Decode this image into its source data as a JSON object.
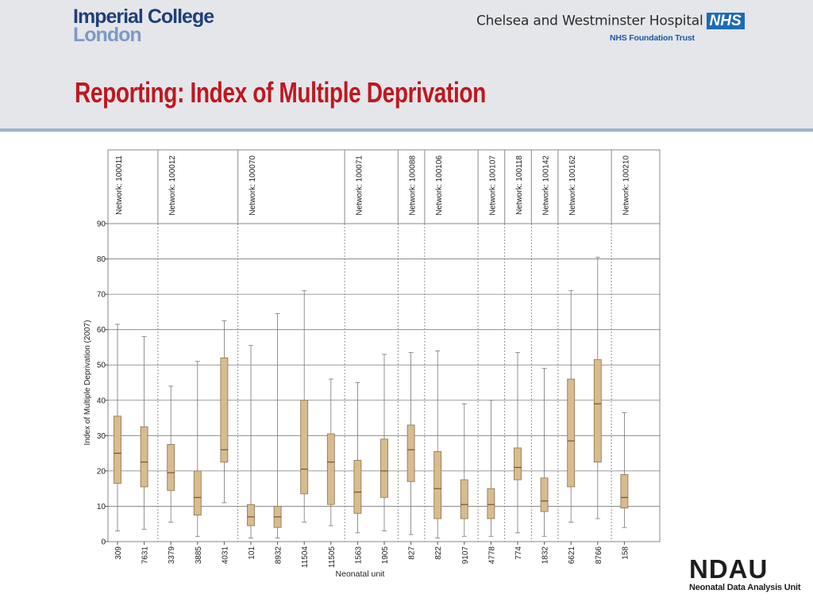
{
  "header": {
    "imperial_line1": "Imperial College",
    "imperial_line2": "London",
    "hospital_name": "Chelsea and Westminster Hospital",
    "nhs_mark": "NHS",
    "trust_name": "NHS Foundation Trust",
    "title": "Reporting: Index of Multiple Deprivation"
  },
  "footer": {
    "ndau_mark": "NDAU",
    "ndau_name": "Neonatal Data Analysis Unit"
  },
  "colors": {
    "title_red": "#c0171f",
    "box_fill": "#d8bb8e",
    "box_stroke": "#8c7250",
    "nhs_blue": "#1c6bb6"
  },
  "chart_data": {
    "type": "boxplot",
    "title": "",
    "xlabel": "Neonatal unit",
    "ylabel": "Index of Multiple Deprivation (2007)",
    "ylim": [
      0,
      90
    ],
    "yticks": [
      0,
      10,
      20,
      30,
      40,
      50,
      60,
      70,
      80,
      90
    ],
    "grid": true,
    "groups": [
      {
        "label": "Network: 100011",
        "units": [
          "309",
          "7631"
        ]
      },
      {
        "label": "Network: 100012",
        "units": [
          "3379",
          "3885",
          "4031"
        ]
      },
      {
        "label": "Network: 100070",
        "units": [
          "101",
          "8932",
          "11504",
          "11505"
        ]
      },
      {
        "label": "Network: 100071",
        "units": [
          "1563",
          "1905"
        ]
      },
      {
        "label": "Network: 100088",
        "units": [
          "827"
        ]
      },
      {
        "label": "Network: 100106",
        "units": [
          "822",
          "9107"
        ]
      },
      {
        "label": "Network: 100107",
        "units": [
          "4778"
        ]
      },
      {
        "label": "Network: 100118",
        "units": [
          "774"
        ]
      },
      {
        "label": "Network: 100142",
        "units": [
          "1832"
        ]
      },
      {
        "label": "Network: 100162",
        "units": [
          "6621",
          "8766"
        ]
      },
      {
        "label": "Network: 100210",
        "units": [
          "158"
        ]
      }
    ],
    "boxes": [
      {
        "unit": "309",
        "min": 3,
        "q1": 16.5,
        "median": 25,
        "q3": 35.5,
        "max": 61.5
      },
      {
        "unit": "7631",
        "min": 3.5,
        "q1": 15.5,
        "median": 22.5,
        "q3": 32.5,
        "max": 58
      },
      {
        "unit": "3379",
        "min": 5.5,
        "q1": 14.5,
        "median": 19.5,
        "q3": 27.5,
        "max": 44
      },
      {
        "unit": "3885",
        "min": 1.5,
        "q1": 7.5,
        "median": 12.5,
        "q3": 20,
        "max": 51
      },
      {
        "unit": "4031",
        "min": 11,
        "q1": 22.5,
        "median": 26,
        "q3": 52,
        "max": 62.5
      },
      {
        "unit": "101",
        "min": 1,
        "q1": 4.5,
        "median": 7,
        "q3": 10.5,
        "max": 55.5
      },
      {
        "unit": "8932",
        "min": 1,
        "q1": 4,
        "median": 7,
        "q3": 10,
        "max": 64.5
      },
      {
        "unit": "11504",
        "min": 5.5,
        "q1": 13.5,
        "median": 20.5,
        "q3": 40,
        "max": 71
      },
      {
        "unit": "11505",
        "min": 4.5,
        "q1": 10.5,
        "median": 22.5,
        "q3": 30.5,
        "max": 46
      },
      {
        "unit": "1563",
        "min": 2.5,
        "q1": 8,
        "median": 14,
        "q3": 23,
        "max": 45
      },
      {
        "unit": "1905",
        "min": 3,
        "q1": 12.5,
        "median": 20,
        "q3": 29,
        "max": 53
      },
      {
        "unit": "827",
        "min": 2,
        "q1": 17,
        "median": 26,
        "q3": 33,
        "max": 53.5
      },
      {
        "unit": "822",
        "min": 1,
        "q1": 6.5,
        "median": 15,
        "q3": 25.5,
        "max": 54
      },
      {
        "unit": "9107",
        "min": 1.5,
        "q1": 6.5,
        "median": 10.5,
        "q3": 17.5,
        "max": 39
      },
      {
        "unit": "4778",
        "min": 1.5,
        "q1": 6.5,
        "median": 10.5,
        "q3": 15,
        "max": 40
      },
      {
        "unit": "774",
        "min": 2.5,
        "q1": 17.5,
        "median": 21,
        "q3": 26.5,
        "max": 53.5
      },
      {
        "unit": "1832",
        "min": 1.5,
        "q1": 8.5,
        "median": 11.5,
        "q3": 18,
        "max": 49
      },
      {
        "unit": "6621",
        "min": 5.5,
        "q1": 15.5,
        "median": 28.5,
        "q3": 46,
        "max": 71
      },
      {
        "unit": "8766",
        "min": 6.5,
        "q1": 22.5,
        "median": 39,
        "q3": 51.5,
        "max": 80.5
      },
      {
        "unit": "158",
        "min": 4,
        "q1": 9.5,
        "median": 12.5,
        "q3": 19,
        "max": 36.5
      }
    ]
  }
}
